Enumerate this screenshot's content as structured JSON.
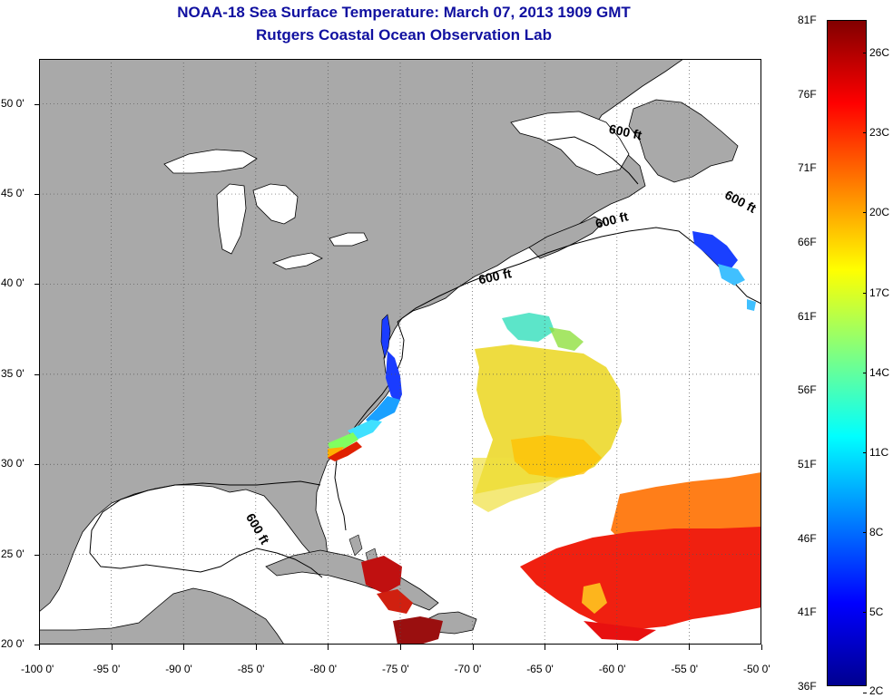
{
  "header": {
    "title": "NOAA-18 Sea Surface Temperature:  March 07, 2013 1909 GMT",
    "subtitle": "Rutgers Coastal Ocean Observation Lab"
  },
  "map": {
    "lon_range": [
      -100,
      -50
    ],
    "lat_range": [
      20,
      52.5
    ],
    "x_ticks": [
      "-100 0'",
      "-95 0'",
      "-90 0'",
      "-85 0'",
      "-80 0'",
      "-75 0'",
      "-70 0'",
      "-65 0'",
      "-60 0'",
      "-55 0'",
      "-50 0'"
    ],
    "x_tick_values": [
      -100,
      -95,
      -90,
      -85,
      -80,
      -75,
      -70,
      -65,
      -60,
      -55,
      -50
    ],
    "y_ticks": [
      "20 0'",
      "25 0'",
      "30 0'",
      "35 0'",
      "40 0'",
      "45 0'",
      "50 0'"
    ],
    "y_tick_values": [
      20,
      25,
      30,
      35,
      40,
      45,
      50
    ],
    "grid": "dotted",
    "land_color": "#a9a9a9",
    "ocean_color": "#ffffff",
    "contour_labels": [
      {
        "text": "600 ft",
        "lon": -60.6,
        "lat": 48.4
      },
      {
        "text": "600 ft",
        "lon": -52.6,
        "lat": 44.8
      },
      {
        "text": "600 ft",
        "lon": -61.4,
        "lat": 43.1
      },
      {
        "text": "600 ft",
        "lon": -69.5,
        "lat": 40.0
      },
      {
        "text": "600 ft",
        "lon": -85.7,
        "lat": 27.1
      }
    ]
  },
  "colorbar": {
    "fahrenheit_labels": [
      "81F",
      "76F",
      "71F",
      "66F",
      "61F",
      "56F",
      "51F",
      "46F",
      "41F",
      "36F"
    ],
    "fahrenheit_values": [
      81,
      76,
      71,
      66,
      61,
      56,
      51,
      46,
      41,
      36
    ],
    "celsius_labels": [
      "26C",
      "23C",
      "20C",
      "17C",
      "14C",
      "11C",
      "8C",
      "5C",
      "2C"
    ],
    "celsius_values": [
      26,
      23,
      20,
      17,
      14,
      11,
      8,
      5,
      2
    ],
    "colormap": "jet",
    "colors": [
      "#00008f",
      "#0000ff",
      "#0080ff",
      "#00ffff",
      "#80ff80",
      "#ffff00",
      "#ff8000",
      "#ff0000",
      "#800000"
    ]
  }
}
